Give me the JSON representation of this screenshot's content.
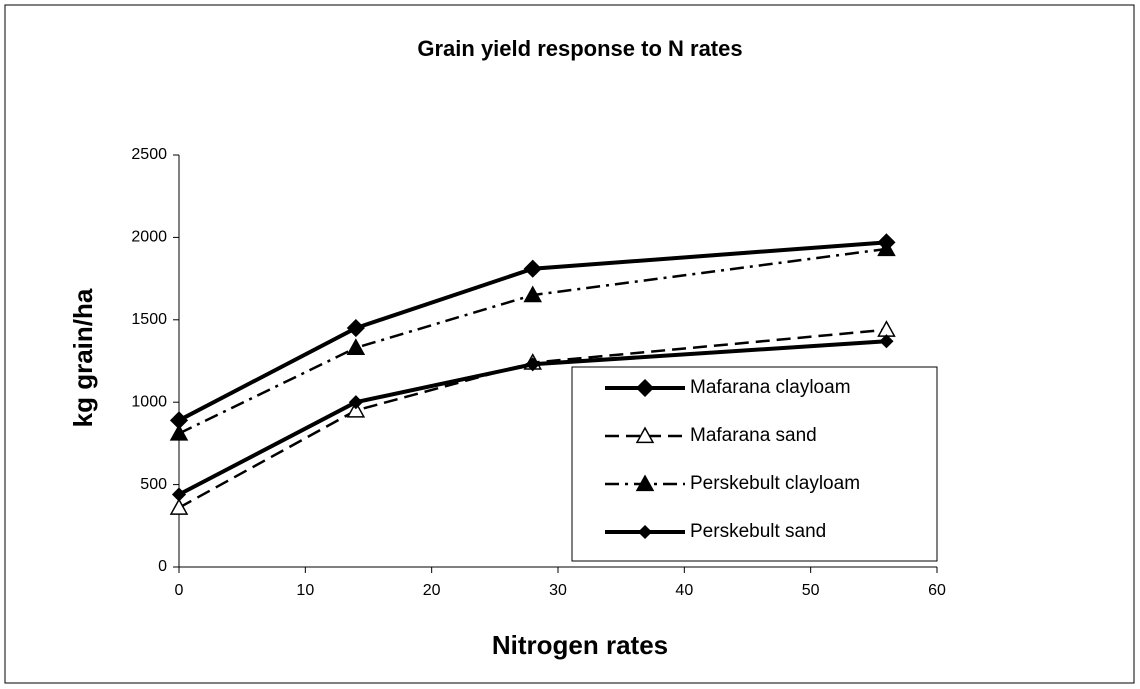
{
  "chart_data": {
    "type": "line",
    "title": "Grain yield response to N rates",
    "x_label": "Nitrogen rates",
    "y_label": "kg grain/ha",
    "x": [
      0,
      14,
      28,
      56
    ],
    "series": [
      {
        "name": "Mafarana clayloam",
        "color": "#000000",
        "dash": "solid",
        "marker": "diamond",
        "values": [
          890,
          1450,
          1810,
          1970
        ]
      },
      {
        "name": "Mafarana sand",
        "color": "#000000",
        "dash": "dash",
        "marker": "triangle-open",
        "values": [
          360,
          950,
          1240,
          1440
        ]
      },
      {
        "name": "Perskebult clayloam",
        "color": "#000000",
        "dash": "dashdot",
        "marker": "triangle",
        "values": [
          810,
          1330,
          1650,
          1930
        ]
      },
      {
        "name": "Perskebult sand",
        "color": "#000000",
        "dash": "solid",
        "marker": "diamond-small",
        "values": [
          440,
          1000,
          1230,
          1370
        ]
      }
    ],
    "xlim": [
      0,
      60
    ],
    "xticks": [
      0,
      10,
      20,
      30,
      40,
      50,
      60
    ],
    "ylim": [
      0,
      2500
    ],
    "yticks": [
      0,
      500,
      1000,
      1500,
      2000,
      2500
    ],
    "legend": "lower right"
  }
}
